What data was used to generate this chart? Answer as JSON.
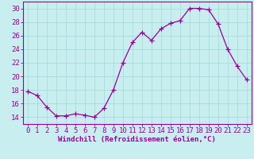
{
  "x": [
    0,
    1,
    2,
    3,
    4,
    5,
    6,
    7,
    8,
    9,
    10,
    11,
    12,
    13,
    14,
    15,
    16,
    17,
    18,
    19,
    20,
    21,
    22,
    23
  ],
  "y": [
    17.8,
    17.2,
    15.5,
    14.2,
    14.2,
    14.5,
    14.3,
    14.0,
    15.3,
    18.0,
    22.0,
    25.0,
    26.5,
    25.3,
    27.0,
    27.8,
    28.2,
    30.0,
    30.0,
    29.8,
    27.7,
    24.0,
    21.5,
    19.5
  ],
  "line_color": "#990099",
  "marker": "+",
  "marker_size": 4,
  "bg_color": "#c8eef0",
  "grid_color": "#aadddd",
  "xlabel": "Windchill (Refroidissement éolien,°C)",
  "ylabel": "",
  "ylim": [
    13,
    31
  ],
  "yticks": [
    14,
    16,
    18,
    20,
    22,
    24,
    26,
    28,
    30
  ],
  "xticks": [
    0,
    1,
    2,
    3,
    4,
    5,
    6,
    7,
    8,
    9,
    10,
    11,
    12,
    13,
    14,
    15,
    16,
    17,
    18,
    19,
    20,
    21,
    22,
    23
  ],
  "xlabel_fontsize": 6.5,
  "tick_fontsize": 6.5,
  "tick_color": "#990099",
  "spine_color": "#990099"
}
